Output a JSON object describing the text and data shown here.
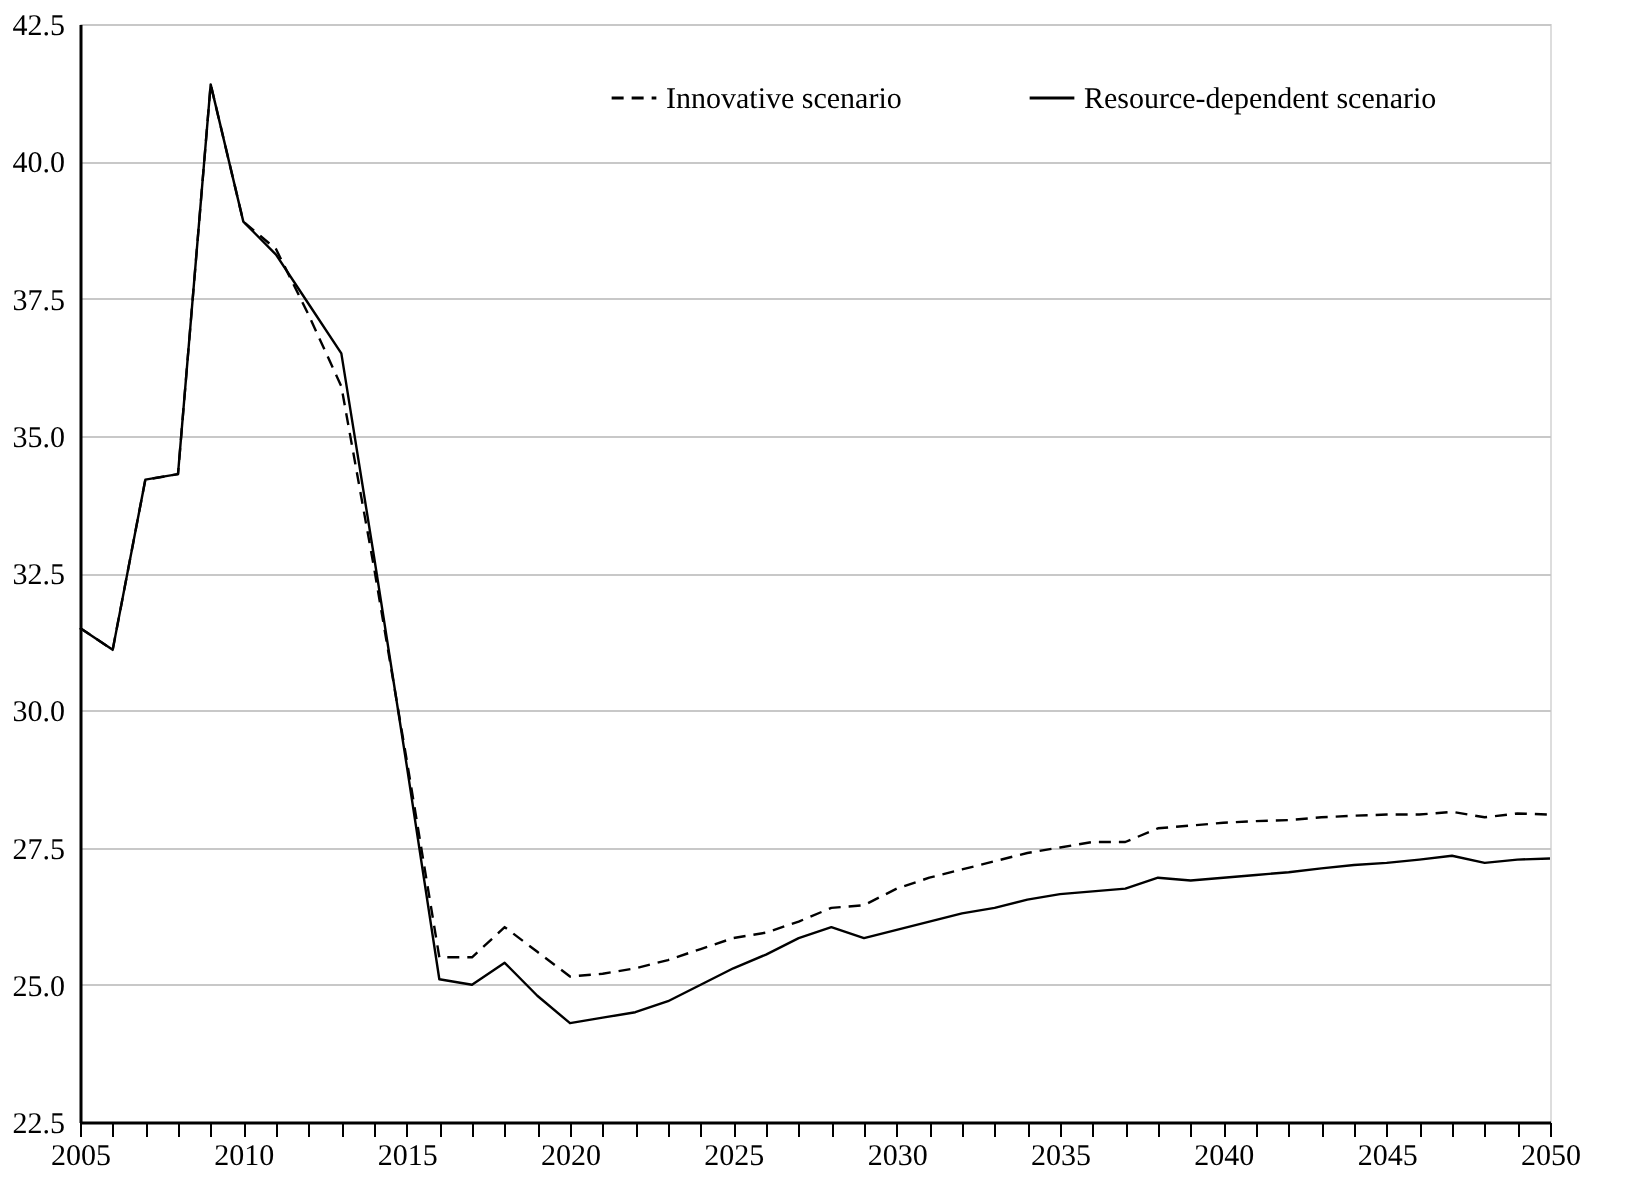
{
  "chart_data": {
    "type": "line",
    "x": [
      2005,
      2006,
      2007,
      2008,
      2009,
      2010,
      2011,
      2012,
      2013,
      2014,
      2015,
      2016,
      2017,
      2018,
      2019,
      2020,
      2021,
      2022,
      2023,
      2024,
      2025,
      2026,
      2027,
      2028,
      2029,
      2030,
      2031,
      2032,
      2033,
      2034,
      2035,
      2036,
      2037,
      2038,
      2039,
      2040,
      2041,
      2042,
      2043,
      2044,
      2045,
      2046,
      2047,
      2048,
      2049,
      2050
    ],
    "series": [
      {
        "name": "Innovative scenario",
        "color": "#000000",
        "line_style": "dashed",
        "values": [
          31.5,
          31.1,
          34.2,
          34.3,
          41.4,
          38.9,
          38.4,
          37.2,
          35.9,
          32.6,
          29.1,
          25.5,
          25.5,
          26.05,
          25.6,
          25.15,
          25.2,
          25.3,
          25.45,
          25.65,
          25.85,
          25.95,
          26.15,
          26.4,
          26.45,
          26.75,
          26.95,
          27.1,
          27.25,
          27.4,
          27.5,
          27.6,
          27.6,
          27.85,
          27.9,
          27.95,
          27.98,
          28.0,
          28.05,
          28.08,
          28.1,
          28.1,
          28.15,
          28.05,
          28.12,
          28.1
        ]
      },
      {
        "name": "Resource-dependent scenario",
        "color": "#000000",
        "line_style": "solid",
        "values": [
          31.5,
          31.1,
          34.2,
          34.3,
          41.4,
          38.9,
          38.3,
          37.4,
          36.5,
          32.8,
          29.0,
          25.1,
          25.0,
          25.4,
          24.8,
          24.3,
          24.4,
          24.5,
          24.7,
          25.0,
          25.3,
          25.55,
          25.85,
          26.05,
          25.85,
          26.0,
          26.15,
          26.3,
          26.4,
          26.55,
          26.65,
          26.7,
          26.75,
          26.95,
          26.9,
          26.95,
          27.0,
          27.05,
          27.12,
          27.18,
          27.22,
          27.28,
          27.35,
          27.22,
          27.28,
          27.3
        ]
      }
    ],
    "xlim": [
      2005,
      2050
    ],
    "xticks": [
      2005,
      {
        "value": 2006,
        "label": null
      },
      {
        "value": 2007,
        "label": null
      },
      {
        "value": 2008,
        "label": null
      },
      {
        "value": 2009,
        "label": null
      },
      2010,
      {
        "value": 2011,
        "label": null
      },
      {
        "value": 2012,
        "label": null
      },
      {
        "value": 2013,
        "label": null
      },
      {
        "value": 2014,
        "label": null
      },
      2015,
      {
        "value": 2016,
        "label": null
      },
      {
        "value": 2017,
        "label": null
      },
      {
        "value": 2018,
        "label": null
      },
      {
        "value": 2019,
        "label": null
      },
      2020,
      {
        "value": 2021,
        "label": null
      },
      {
        "value": 2022,
        "label": null
      },
      {
        "value": 2023,
        "label": null
      },
      {
        "value": 2024,
        "label": null
      },
      2025,
      {
        "value": 2026,
        "label": null
      },
      {
        "value": 2027,
        "label": null
      },
      {
        "value": 2028,
        "label": null
      },
      {
        "value": 2029,
        "label": null
      },
      2030,
      {
        "value": 2031,
        "label": null
      },
      {
        "value": 2032,
        "label": null
      },
      {
        "value": 2033,
        "label": null
      },
      {
        "value": 2034,
        "label": null
      },
      2035,
      {
        "value": 2036,
        "label": null
      },
      {
        "value": 2037,
        "label": null
      },
      {
        "value": 2038,
        "label": null
      },
      {
        "value": 2039,
        "label": null
      },
      2040,
      {
        "value": 2041,
        "label": null
      },
      {
        "value": 2042,
        "label": null
      },
      {
        "value": 2043,
        "label": null
      },
      {
        "value": 2044,
        "label": null
      },
      2045,
      {
        "value": 2046,
        "label": null
      },
      {
        "value": 2047,
        "label": null
      },
      {
        "value": 2048,
        "label": null
      },
      {
        "value": 2049,
        "label": null
      },
      2050
    ],
    "ylim": [
      22.5,
      42.5
    ],
    "yticks": [
      {
        "value": 22.5,
        "label": "22.5"
      },
      {
        "value": 25,
        "label": "25.0"
      },
      {
        "value": 27.5,
        "label": "27.5"
      },
      {
        "value": 30,
        "label": "30.0"
      },
      {
        "value": 32.5,
        "label": "32.5"
      },
      {
        "value": 35,
        "label": "35.0"
      },
      {
        "value": 37.5,
        "label": "37.5"
      },
      {
        "value": 40,
        "label": "40.0"
      },
      {
        "value": 42.5,
        "label": "42.5"
      }
    ],
    "grid": "y",
    "legend": "top right",
    "marker": "none"
  }
}
